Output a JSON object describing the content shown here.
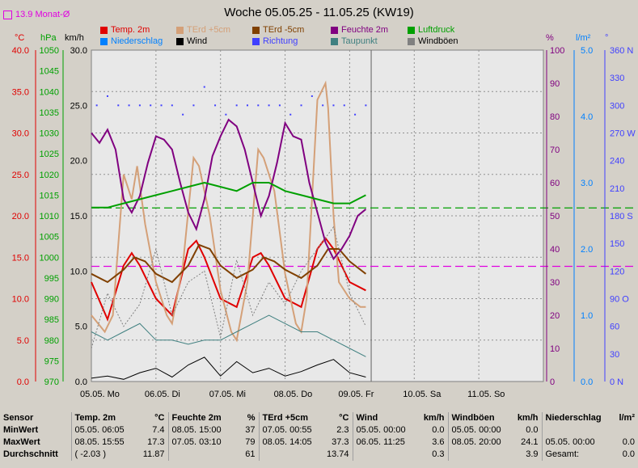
{
  "title": "Woche 05.05.25 - 11.05.25 (KW19)",
  "month_avg_label": "13.9 Monat-Ø",
  "legend": [
    {
      "label": "Temp. 2m",
      "color": "#e00000"
    },
    {
      "label": "TErd +5cm",
      "color": "#d4a078"
    },
    {
      "label": "TErd -5cm",
      "color": "#804000"
    },
    {
      "label": "Feuchte 2m",
      "color": "#800080"
    },
    {
      "label": "Luftdruck",
      "color": "#00a000"
    },
    {
      "label": "Niederschlag",
      "color": "#0080ff"
    },
    {
      "label": "Wind",
      "color": "#000000"
    },
    {
      "label": "Richtung",
      "color": "#4040ff"
    },
    {
      "label": "Taupunkt",
      "color": "#408080"
    },
    {
      "label": "Windböen",
      "color": "#808080"
    }
  ],
  "axes": {
    "temp": {
      "unit": "°C",
      "ticks": [
        "40.0",
        "35.0",
        "30.0",
        "25.0",
        "20.0",
        "15.0",
        "10.0",
        "5.0",
        "0.0"
      ],
      "color": "#e00000"
    },
    "pressure": {
      "unit": "hPa",
      "ticks": [
        "1050",
        "1045",
        "1040",
        "1035",
        "1030",
        "1025",
        "1020",
        "1015",
        "1010",
        "1005",
        "1000",
        "995",
        "990",
        "985",
        "980",
        "975",
        "970"
      ],
      "color": "#00a000"
    },
    "wind": {
      "unit": "km/h",
      "ticks": [
        "30.0",
        "25.0",
        "20.0",
        "15.0",
        "10.0",
        "5.0",
        "0.0"
      ],
      "color": "#000000"
    },
    "humidity": {
      "unit": "%",
      "ticks": [
        "100",
        "90",
        "80",
        "70",
        "60",
        "50",
        "40",
        "30",
        "20",
        "10",
        "0"
      ],
      "color": "#800080"
    },
    "rain": {
      "unit": "l/m²",
      "ticks": [
        "5.0",
        "4.0",
        "3.0",
        "2.0",
        "1.0",
        "0.0"
      ],
      "color": "#0080ff"
    },
    "direction": {
      "unit": "°",
      "ticks": [
        "360 N",
        "330",
        "300",
        "270 W",
        "240",
        "210",
        "180 S",
        "150",
        "120",
        "90 O",
        "60",
        "30",
        "0 N"
      ],
      "color": "#4040ff"
    }
  },
  "chart_data": {
    "type": "line",
    "x_labels": [
      "05.05. Mo",
      "06.05. Di",
      "07.05. Mi",
      "08.05. Do",
      "09.05. Fr",
      "10.05. Sa",
      "11.05. So"
    ],
    "x_unit": "hours since 05.05. 00:00",
    "ylim_temp": [
      0,
      40
    ],
    "ylim_wind": [
      0,
      30
    ],
    "ylim_pressure": [
      970,
      1050
    ],
    "ylim_humidity": [
      0,
      100
    ],
    "reference_lines": [
      {
        "name": "Luftdruck Mittel",
        "value_hpa": 1011.9,
        "color": "#00a000"
      },
      {
        "name": "13.9 Monat-Ø",
        "value_c": 13.9,
        "color": "#e000e0"
      }
    ],
    "series": [
      {
        "name": "Temp. 2m",
        "axis": "temp",
        "color": "#e00000",
        "x": [
          0,
          6,
          12,
          15,
          18,
          24,
          30,
          36,
          39,
          42,
          48,
          54,
          60,
          63,
          66,
          72,
          78,
          84,
          87,
          90,
          96,
          102
        ],
        "values": [
          12,
          7.5,
          14,
          15.5,
          14,
          10,
          8,
          16,
          17,
          15,
          10,
          9,
          15,
          15.5,
          14,
          10,
          9,
          16,
          17.3,
          16,
          12,
          11
        ]
      },
      {
        "name": "TErd +5cm",
        "axis": "temp",
        "color": "#d4a078",
        "x": [
          0,
          5,
          8,
          12,
          15,
          17,
          20,
          24,
          28,
          30,
          34,
          38,
          40,
          44,
          48,
          52,
          54,
          58,
          62,
          64,
          68,
          72,
          76,
          78,
          80,
          84,
          87,
          88,
          90,
          92,
          96,
          100,
          102
        ],
        "values": [
          8,
          6,
          8,
          25,
          22,
          26,
          19,
          12,
          8,
          7,
          14,
          27,
          26,
          20,
          11,
          6,
          5,
          12,
          28,
          27,
          23,
          13,
          7,
          6,
          10,
          34,
          36,
          33,
          20,
          12,
          10,
          9,
          9
        ]
      },
      {
        "name": "TErd -5cm",
        "axis": "temp",
        "color": "#804000",
        "x": [
          0,
          6,
          12,
          16,
          20,
          24,
          30,
          36,
          40,
          44,
          48,
          54,
          60,
          64,
          68,
          72,
          78,
          84,
          88,
          92,
          96,
          102
        ],
        "values": [
          13,
          12,
          13.5,
          15,
          14.5,
          13,
          12,
          14,
          16.5,
          16,
          14,
          12.5,
          13.5,
          15,
          14.5,
          13.5,
          12.5,
          14,
          16,
          16,
          14.5,
          13
        ]
      },
      {
        "name": "Taupunkt",
        "axis": "temp",
        "color": "#408080",
        "x": [
          0,
          6,
          12,
          18,
          24,
          30,
          36,
          42,
          48,
          54,
          60,
          66,
          72,
          78,
          84,
          90,
          96,
          102
        ],
        "values": [
          6,
          5,
          6,
          7,
          5,
          5,
          4.5,
          5,
          5,
          6,
          7,
          8,
          7,
          6,
          6,
          5,
          4,
          3
        ]
      },
      {
        "name": "Feuchte 2m",
        "axis": "humidity",
        "color": "#800080",
        "x": [
          0,
          3,
          6,
          9,
          12,
          15,
          18,
          21,
          24,
          27,
          30,
          33,
          36,
          39,
          42,
          45,
          48,
          51,
          54,
          57,
          60,
          63,
          66,
          69,
          72,
          75,
          78,
          81,
          84,
          87,
          90,
          93,
          96,
          99,
          102
        ],
        "values": [
          75,
          72,
          76,
          70,
          55,
          51,
          56,
          66,
          74,
          73,
          70,
          60,
          51,
          46,
          55,
          68,
          74,
          79,
          77,
          70,
          60,
          50,
          56,
          66,
          78,
          74,
          73,
          60,
          51,
          42,
          37,
          40,
          44,
          50,
          52
        ]
      },
      {
        "name": "Luftdruck",
        "axis": "pressure",
        "color": "#00a000",
        "x": [
          0,
          6,
          12,
          18,
          24,
          30,
          36,
          42,
          48,
          54,
          60,
          66,
          72,
          78,
          84,
          90,
          96,
          102
        ],
        "values": [
          1012,
          1012,
          1013,
          1014,
          1015,
          1016,
          1017,
          1018,
          1017,
          1016,
          1018,
          1018,
          1016,
          1015,
          1014,
          1013,
          1013,
          1015
        ]
      },
      {
        "name": "Wind",
        "axis": "wind",
        "color": "#000000",
        "x": [
          0,
          6,
          12,
          18,
          24,
          30,
          36,
          42,
          48,
          54,
          60,
          66,
          72,
          78,
          84,
          90,
          96,
          102
        ],
        "values": [
          0.3,
          0.5,
          0.2,
          0.8,
          1.2,
          0.4,
          1.5,
          2.2,
          0.5,
          1.8,
          0.8,
          1.2,
          0.5,
          0.9,
          1.5,
          2.0,
          0.8,
          0.4
        ]
      },
      {
        "name": "Windböen",
        "axis": "wind",
        "color": "#808080",
        "x": [
          0,
          6,
          12,
          18,
          24,
          30,
          36,
          42,
          48,
          54,
          60,
          66,
          72,
          78,
          84,
          90,
          96,
          102
        ],
        "values": [
          3,
          8,
          5,
          7,
          12,
          6,
          9,
          10,
          4,
          11,
          6,
          9,
          7,
          10,
          12,
          14,
          8,
          5
        ]
      }
    ],
    "direction_points": {
      "x": [
        2,
        6,
        10,
        14,
        18,
        22,
        26,
        30,
        34,
        38,
        42,
        46,
        50,
        54,
        58,
        62,
        66,
        70,
        74,
        78,
        82,
        86,
        90,
        94,
        98,
        102
      ],
      "values": [
        300,
        310,
        300,
        300,
        300,
        300,
        300,
        300,
        290,
        300,
        320,
        300,
        290,
        300,
        300,
        300,
        300,
        300,
        290,
        300,
        310,
        300,
        300,
        300,
        290,
        300
      ]
    }
  },
  "stats": {
    "header": [
      "Sensor",
      "Temp. 2m",
      "°C",
      "Feuchte 2m",
      "%",
      "TErd +5cm",
      "°C",
      "Wind",
      "km/h",
      "Windböen",
      "km/h",
      "Niederschlag",
      "l/m²"
    ],
    "rows": [
      {
        "label": "MinWert",
        "cells": [
          "05.05. 06:05",
          "7.4",
          "08.05. 15:00",
          "37",
          "07.05. 00:55",
          "2.3",
          "05.05. 00:00",
          "0.0",
          "05.05. 00:00",
          "0.0",
          "",
          ""
        ]
      },
      {
        "label": "MaxWert",
        "cells": [
          "08.05. 15:55",
          "17.3",
          "07.05. 03:10",
          "79",
          "08.05. 14:05",
          "37.3",
          "06.05. 11:25",
          "3.6",
          "08.05. 20:00",
          "24.1",
          "05.05. 00:00",
          "0.0"
        ]
      },
      {
        "label": "Durchschnitt",
        "cells": [
          "( -2.03 )",
          "11.87",
          "",
          "61",
          "",
          "13.74",
          "",
          "0.3",
          "",
          "3.9",
          "Gesamt:",
          "0.0"
        ]
      }
    ]
  }
}
